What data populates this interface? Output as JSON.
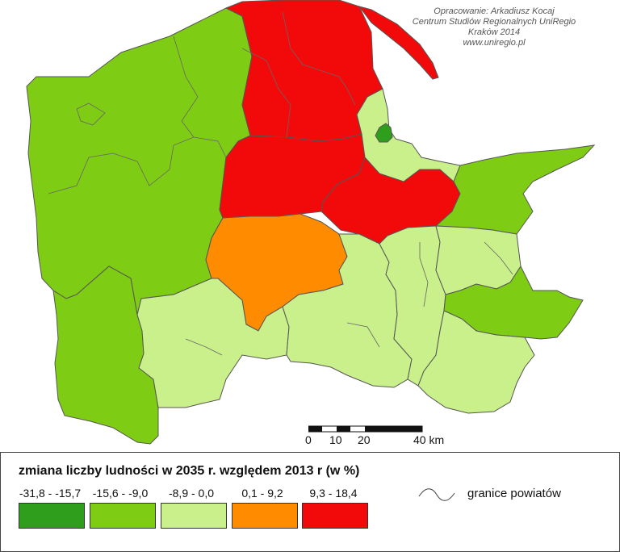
{
  "credits": [
    "Opracowanie: Arkadiusz Kocaj",
    "Centrum Studiów Regionalnych UniRegio",
    "Kraków 2014",
    "www.uniregio.pl"
  ],
  "legend": {
    "title": "zmiana liczby ludności w 2035 r. względem 2013 r (w %)",
    "classes": [
      {
        "label": "-31,8 - -15,7",
        "color": "#2e9e1c"
      },
      {
        "label": "-15,6 - -9,0",
        "color": "#7fcc14"
      },
      {
        "label": "-8,9 - 0,0",
        "color": "#c9f08a"
      },
      {
        "label": "0,1 - 9,2",
        "color": "#ff8c00"
      },
      {
        "label": "9,3 - 18,4",
        "color": "#f20a0a"
      }
    ],
    "border_label": "granice powiatów"
  },
  "scale": {
    "labels": [
      "0",
      "10",
      "20",
      "40 km"
    ]
  },
  "colors": {
    "sea_spit": "#f20a0a",
    "district_border": "#555555"
  }
}
